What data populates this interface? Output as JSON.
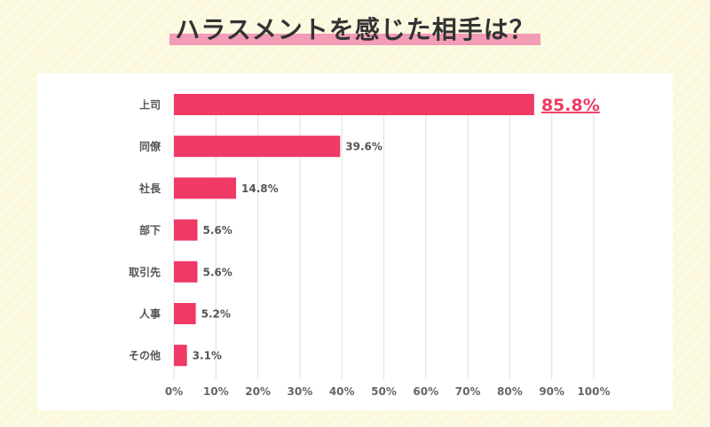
{
  "title": "ハラスメントを感じた相手は？",
  "colors": {
    "bar": "#ee3a64",
    "highlight": "#f29cb5",
    "label": "#555555",
    "top_label": "#ee3a64"
  },
  "chart_data": {
    "type": "bar",
    "orientation": "horizontal",
    "categories": [
      "上司",
      "同僚",
      "社長",
      "部下",
      "取引先",
      "人事",
      "その他"
    ],
    "values": [
      85.8,
      39.6,
      14.8,
      5.6,
      5.6,
      5.2,
      3.1
    ],
    "data_labels": [
      "85.8%",
      "39.6%",
      "14.8%",
      "5.6%",
      "5.6%",
      "5.2%",
      "3.1%"
    ],
    "xlim": [
      0,
      100
    ],
    "x_ticks": [
      "0%",
      "10%",
      "20%",
      "30%",
      "40%",
      "50%",
      "60%",
      "70%",
      "80%",
      "90%",
      "100%"
    ],
    "grid": "vertical",
    "title": "ハラスメントを感じた相手は？"
  }
}
